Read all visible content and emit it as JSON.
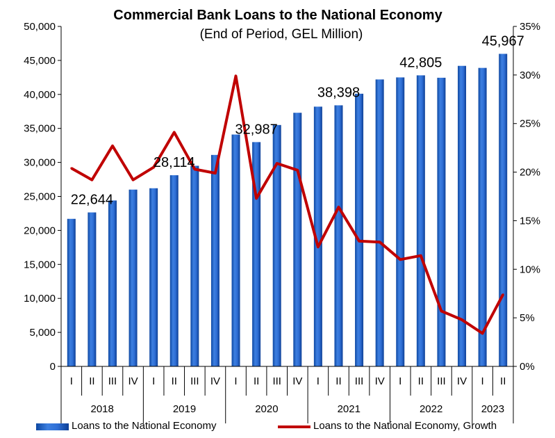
{
  "chart_data": {
    "type": "bar+line",
    "title": "Commercial Bank Loans to the National Economy",
    "subtitle": "(End of Period, GEL Million)",
    "categories": [
      "I",
      "II",
      "III",
      "IV",
      "I",
      "II",
      "III",
      "IV",
      "I",
      "II",
      "III",
      "IV",
      "I",
      "II",
      "III",
      "IV",
      "I",
      "II",
      "III",
      "IV",
      "I",
      "II"
    ],
    "years": [
      {
        "label": "2018",
        "count": 4
      },
      {
        "label": "2019",
        "count": 4
      },
      {
        "label": "2020",
        "count": 4
      },
      {
        "label": "2021",
        "count": 4
      },
      {
        "label": "2022",
        "count": 4
      },
      {
        "label": "2023",
        "count": 2
      }
    ],
    "series": [
      {
        "name": "Loans to the National Economy",
        "type": "bar",
        "axis": "left",
        "color": "#1f5fbf",
        "values": [
          21700,
          22644,
          24400,
          26000,
          26200,
          28114,
          29500,
          31100,
          34100,
          32987,
          35500,
          37300,
          38200,
          38398,
          40100,
          42200,
          42500,
          42805,
          42450,
          44200,
          43900,
          45967
        ]
      },
      {
        "name": "Loans to the National Economy, Growth",
        "type": "line",
        "axis": "right",
        "color": "#c00000",
        "values": [
          20.4,
          19.2,
          22.7,
          19.2,
          20.5,
          24.1,
          20.3,
          19.9,
          29.9,
          17.3,
          20.9,
          20.2,
          12.3,
          16.4,
          12.9,
          12.8,
          11.0,
          11.4,
          5.7,
          4.8,
          3.4,
          7.4
        ]
      }
    ],
    "data_labels": [
      {
        "index": 1,
        "text": "22,644"
      },
      {
        "index": 5,
        "text": "28,114"
      },
      {
        "index": 9,
        "text": "32,987"
      },
      {
        "index": 13,
        "text": "38,398"
      },
      {
        "index": 17,
        "text": "42,805"
      },
      {
        "index": 21,
        "text": "45,967"
      }
    ],
    "y_left": {
      "min": 0,
      "max": 50000,
      "step": 5000,
      "ticks": [
        "0",
        "5,000",
        "10,000",
        "15,000",
        "20,000",
        "25,000",
        "30,000",
        "35,000",
        "40,000",
        "45,000",
        "50,000"
      ]
    },
    "y_right": {
      "min": 0,
      "max": 35,
      "step": 5,
      "ticks": [
        "0%",
        "5%",
        "10%",
        "15%",
        "20%",
        "25%",
        "30%",
        "35%"
      ]
    },
    "legend_position": "bottom",
    "grid": false
  }
}
